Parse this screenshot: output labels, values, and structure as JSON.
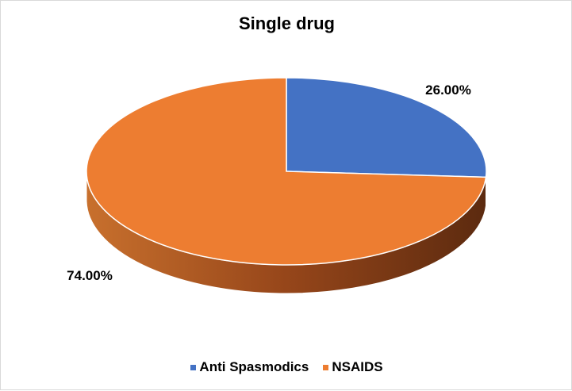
{
  "chart_data": {
    "type": "pie",
    "title": "Single drug",
    "categories": [
      "Anti Spasmodics",
      "NSAIDS"
    ],
    "values": [
      26.0,
      74.0
    ],
    "data_labels": [
      "26.00%",
      "74.00%"
    ],
    "colors": [
      "#4472c4",
      "#ed7d31"
    ],
    "side_colors": [
      "#2f528f",
      "#9c4a16"
    ],
    "style": "3d",
    "legend_position": "bottom"
  }
}
